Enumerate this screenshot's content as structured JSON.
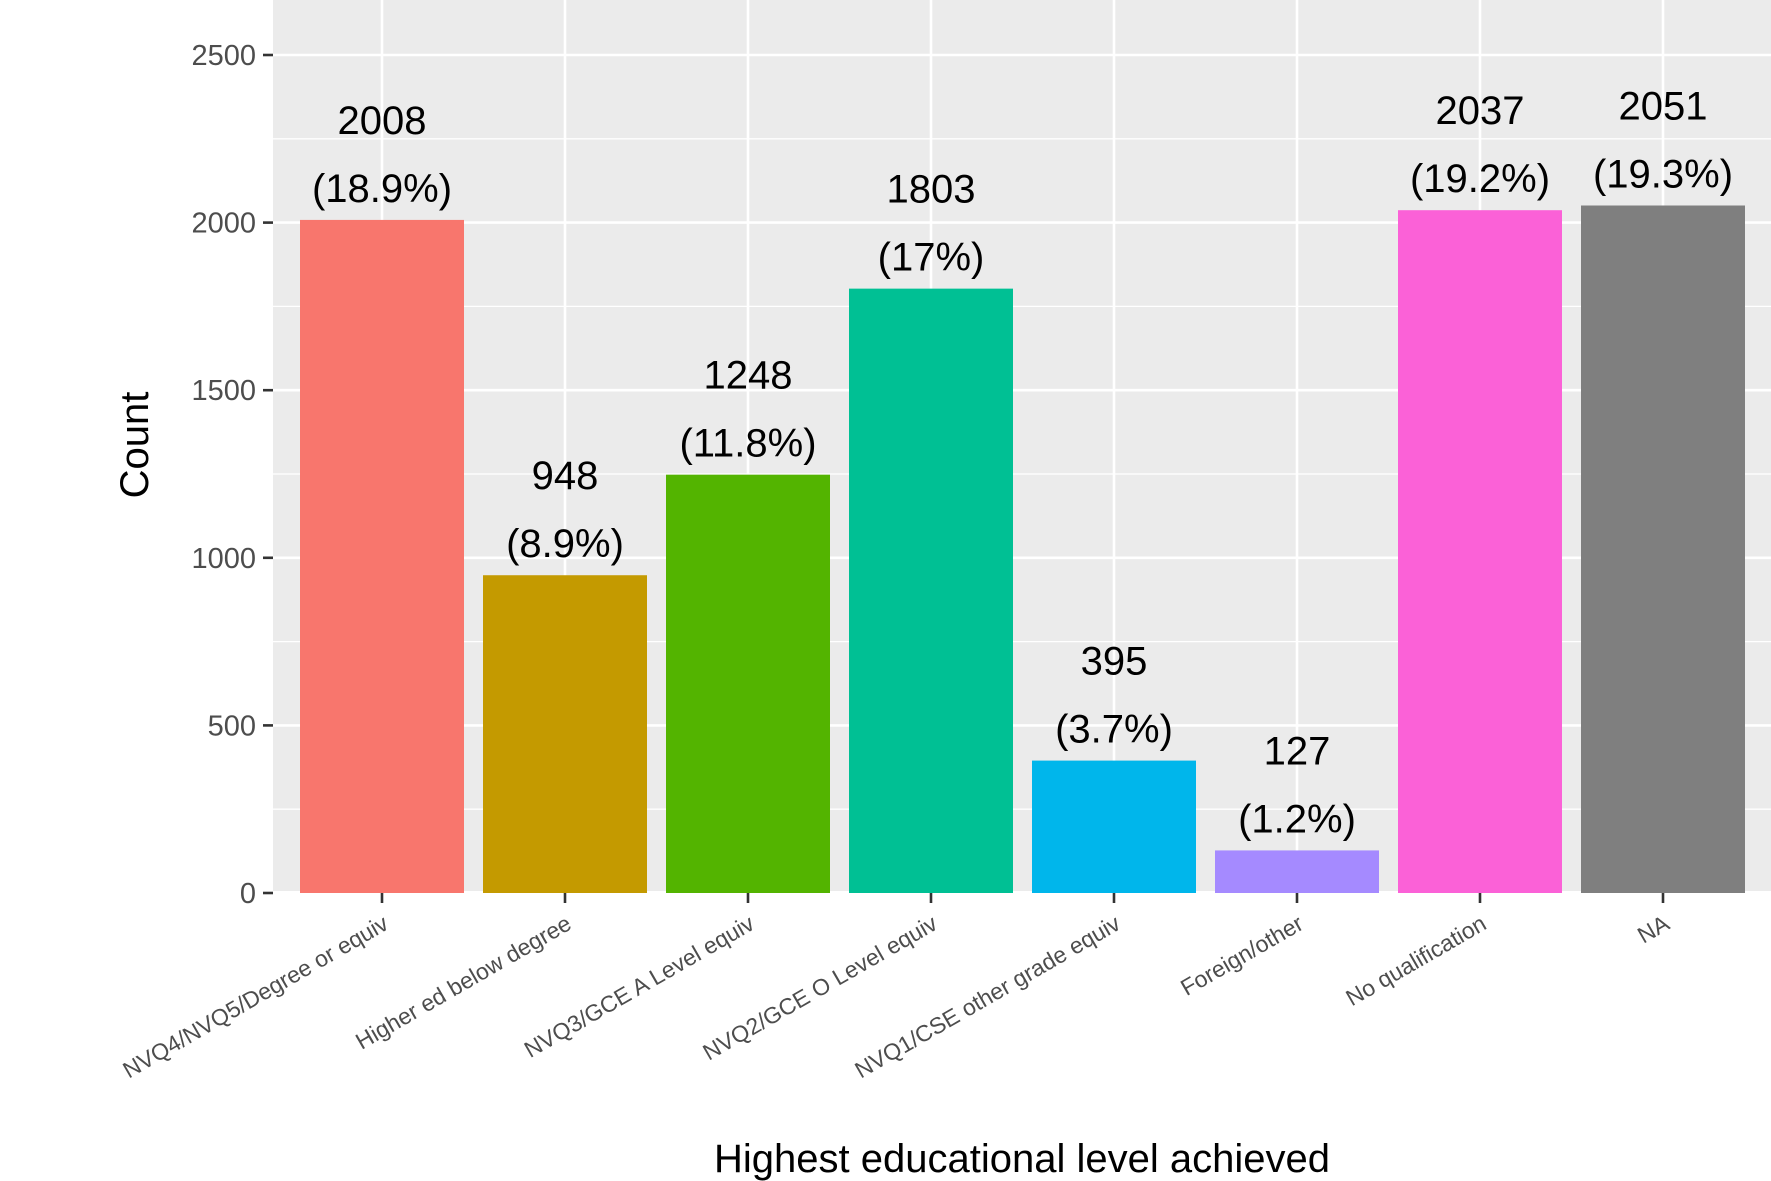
{
  "chart_data": {
    "type": "bar",
    "title": "",
    "xlabel": "Highest educational level achieved",
    "ylabel": "Count",
    "ylim": [
      0,
      2650
    ],
    "y_ticks": [
      0,
      500,
      1000,
      1500,
      2000,
      2500
    ],
    "y_tick_labels": [
      "0",
      "500",
      "1000",
      "1500",
      "2000",
      "2500"
    ],
    "grid": true,
    "legend": "none",
    "categories": [
      "NVQ4/NVQ5/Degree or equiv",
      "Higher ed below degree",
      "NVQ3/GCE A Level equiv",
      "NVQ2/GCE O Level equiv",
      "NVQ1/CSE other grade equiv",
      "Foreign/other",
      "No qualification",
      "NA"
    ],
    "values": [
      2008,
      948,
      1248,
      1803,
      395,
      127,
      2037,
      2051
    ],
    "count_labels": [
      "2008",
      "948",
      "1248",
      "1803",
      "395",
      "127",
      "2037",
      "2051"
    ],
    "percent_labels": [
      "(18.9%)",
      "(8.9%)",
      "(11.8%)",
      "(17%)",
      "(3.7%)",
      "(1.2%)",
      "(19.2%)",
      "(19.3%)"
    ],
    "colors": [
      "#F8766D",
      "#C49A00",
      "#53B400",
      "#00C094",
      "#00B6EB",
      "#A58AFF",
      "#FB61D7",
      "#7F7F7F"
    ],
    "panel_background": "#EBEBEB",
    "grid_color": "#FFFFFF"
  }
}
